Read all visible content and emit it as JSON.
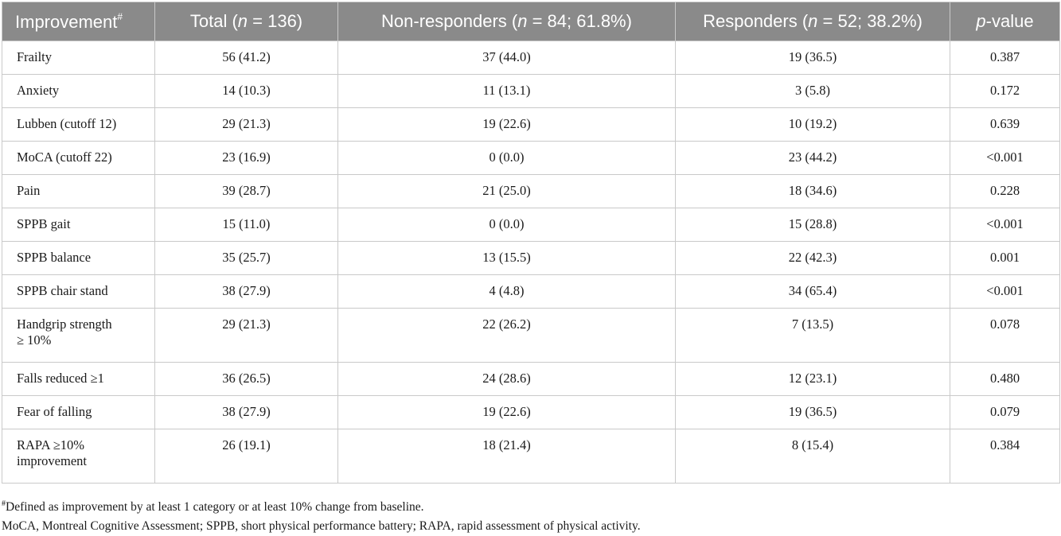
{
  "header": {
    "col1": "Improvement",
    "col1_sup": "#",
    "total": {
      "pre": "Total (",
      "n": "n",
      "post": " = 136)"
    },
    "nonresp": {
      "pre": "Non-responders (",
      "n": "n",
      "post": " = 84; 61.8%)"
    },
    "resp": {
      "pre": "Responders (",
      "n": "n",
      "post": " = 52; 38.2%)"
    },
    "pvalue": {
      "p": "p",
      "post": "-value"
    }
  },
  "rows": [
    {
      "label": "Frailty",
      "total": "56 (41.2)",
      "non": "37 (44.0)",
      "resp": "19 (36.5)",
      "p": "0.387"
    },
    {
      "label": "Anxiety",
      "total": "14 (10.3)",
      "non": "11 (13.1)",
      "resp": "3 (5.8)",
      "p": "0.172"
    },
    {
      "label": "Lubben (cutoff 12)",
      "total": "29 (21.3)",
      "non": "19 (22.6)",
      "resp": "10 (19.2)",
      "p": "0.639"
    },
    {
      "label": "MoCA (cutoff 22)",
      "total": "23 (16.9)",
      "non": "0 (0.0)",
      "resp": "23 (44.2)",
      "p": "<0.001"
    },
    {
      "label": "Pain",
      "total": "39 (28.7)",
      "non": "21 (25.0)",
      "resp": "18 (34.6)",
      "p": "0.228"
    },
    {
      "label": "SPPB gait",
      "total": "15 (11.0)",
      "non": "0 (0.0)",
      "resp": "15 (28.8)",
      "p": "<0.001"
    },
    {
      "label": "SPPB balance",
      "total": "35 (25.7)",
      "non": "13 (15.5)",
      "resp": "22 (42.3)",
      "p": "0.001"
    },
    {
      "label": "SPPB chair stand",
      "total": "38 (27.9)",
      "non": "4 (4.8)",
      "resp": "34 (65.4)",
      "p": "<0.001"
    },
    {
      "label": "Handgrip strength",
      "label2": "≥ 10%",
      "total": "29 (21.3)",
      "non": "22 (26.2)",
      "resp": "7 (13.5)",
      "p": "0.078"
    },
    {
      "label": "Falls reduced ≥1",
      "total": "36 (26.5)",
      "non": "24 (28.6)",
      "resp": "12 (23.1)",
      "p": "0.480"
    },
    {
      "label": "Fear of falling",
      "total": "38 (27.9)",
      "non": "19 (22.6)",
      "resp": "19 (36.5)",
      "p": "0.079"
    },
    {
      "label": "RAPA ≥10%",
      "label2": "improvement",
      "total": "26 (19.1)",
      "non": "18 (21.4)",
      "resp": "8 (15.4)",
      "p": "0.384"
    }
  ],
  "footnotes": {
    "note1_sup": "#",
    "note1": "Defined as improvement by at least 1 category or at least 10% change from baseline.",
    "note2": "MoCA, Montreal Cognitive Assessment; SPPB, short physical performance battery; RAPA, rapid assessment of physical activity."
  }
}
